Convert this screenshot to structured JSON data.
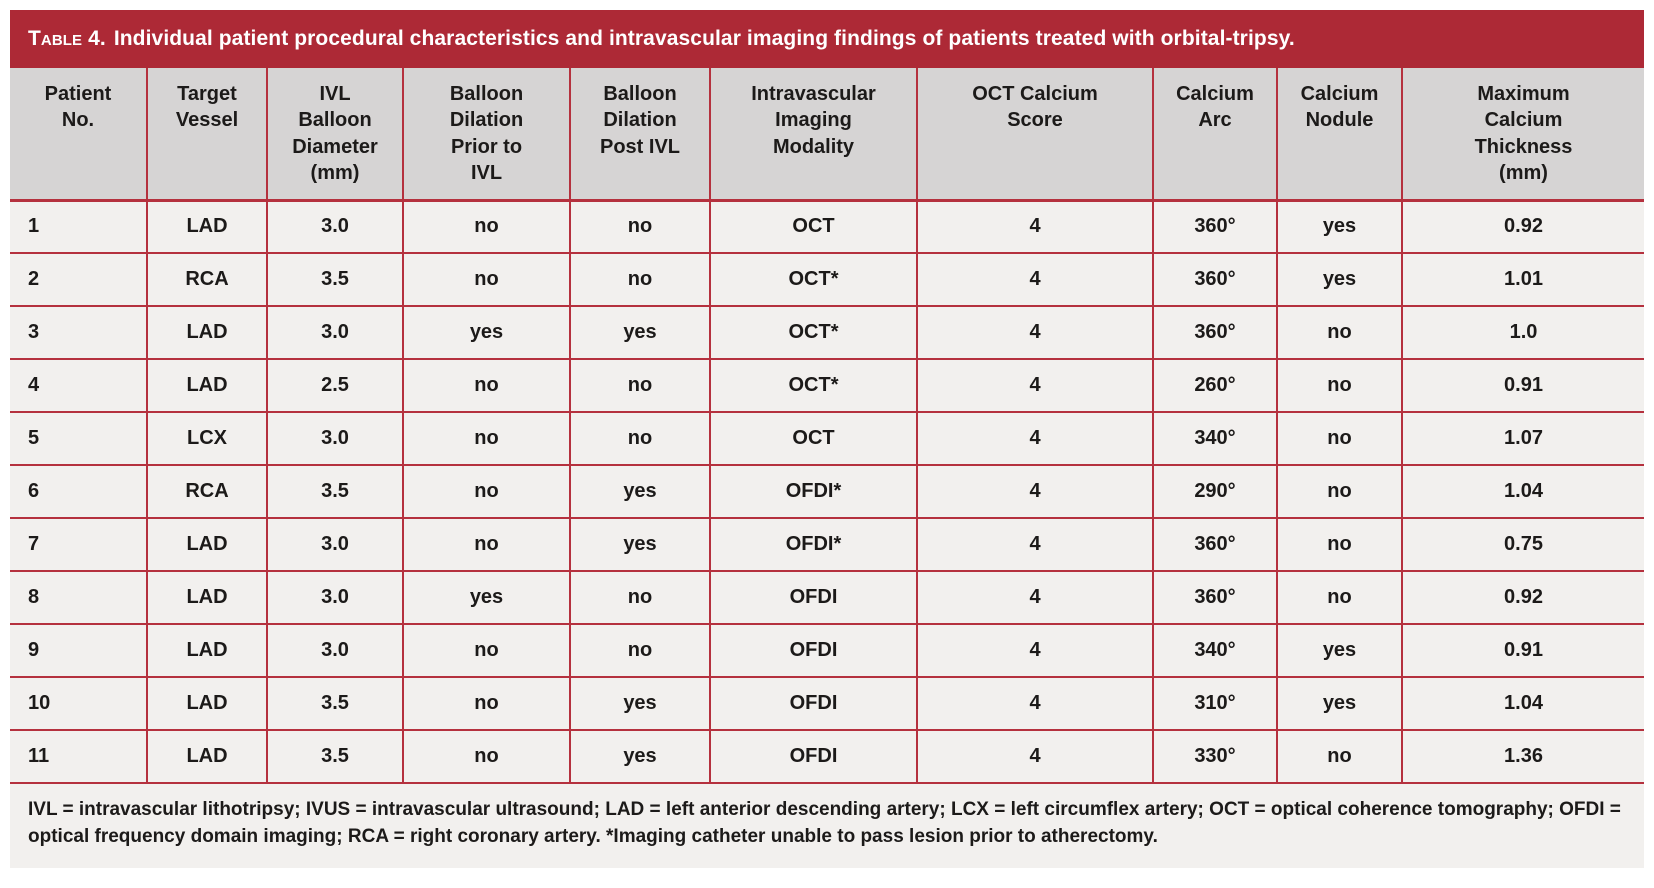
{
  "title": {
    "label": "Table 4.",
    "text": "Individual patient procedural characteristics and intravascular imaging findings of patients treated with orbital-tripsy."
  },
  "colors": {
    "accent_red": "#ad2936",
    "rule_red": "#b5313e",
    "header_gray": "#d6d4d4",
    "row_background": "#f2f0ee",
    "title_text": "#ffffff",
    "body_text": "#1c1a19"
  },
  "table": {
    "columns": [
      {
        "label": "Patient\nNo."
      },
      {
        "label": "Target\nVessel"
      },
      {
        "label": "IVL\nBalloon\nDiameter\n(mm)"
      },
      {
        "label": "Balloon\nDilation\nPrior to\nIVL"
      },
      {
        "label": "Balloon\nDilation\nPost IVL"
      },
      {
        "label": "Intravascular\nImaging\nModality"
      },
      {
        "label": "OCT Calcium\nScore"
      },
      {
        "label": "Calcium\nArc"
      },
      {
        "label": "Calcium\nNodule"
      },
      {
        "label": "Maximum\nCalcium\nThickness\n(mm)"
      }
    ],
    "rows": [
      {
        "cells": [
          "1",
          "LAD",
          "3.0",
          "no",
          "no",
          "OCT",
          "4",
          "360°",
          "yes",
          "0.92"
        ]
      },
      {
        "cells": [
          "2",
          "RCA",
          "3.5",
          "no",
          "no",
          "OCT*",
          "4",
          "360°",
          "yes",
          "1.01"
        ]
      },
      {
        "cells": [
          "3",
          "LAD",
          "3.0",
          "yes",
          "yes",
          "OCT*",
          "4",
          "360°",
          "no",
          "1.0"
        ]
      },
      {
        "cells": [
          "4",
          "LAD",
          "2.5",
          "no",
          "no",
          "OCT*",
          "4",
          "260°",
          "no",
          "0.91"
        ]
      },
      {
        "cells": [
          "5",
          "LCX",
          "3.0",
          "no",
          "no",
          "OCT",
          "4",
          "340°",
          "no",
          "1.07"
        ]
      },
      {
        "cells": [
          "6",
          "RCA",
          "3.5",
          "no",
          "yes",
          "OFDI*",
          "4",
          "290°",
          "no",
          "1.04"
        ]
      },
      {
        "cells": [
          "7",
          "LAD",
          "3.0",
          "no",
          "yes",
          "OFDI*",
          "4",
          "360°",
          "no",
          "0.75"
        ]
      },
      {
        "cells": [
          "8",
          "LAD",
          "3.0",
          "yes",
          "no",
          "OFDI",
          "4",
          "360°",
          "no",
          "0.92"
        ]
      },
      {
        "cells": [
          "9",
          "LAD",
          "3.0",
          "no",
          "no",
          "OFDI",
          "4",
          "340°",
          "yes",
          "0.91"
        ]
      },
      {
        "cells": [
          "10",
          "LAD",
          "3.5",
          "no",
          "yes",
          "OFDI",
          "4",
          "310°",
          "yes",
          "1.04"
        ]
      },
      {
        "cells": [
          "11",
          "LAD",
          "3.5",
          "no",
          "yes",
          "OFDI",
          "4",
          "330°",
          "no",
          "1.36"
        ]
      }
    ]
  },
  "footnote": "IVL = intravascular lithotripsy; IVUS = intravascular ultrasound; LAD = left anterior descending artery; LCX = left circumflex artery; OCT = optical coherence tomography; OFDI = optical frequency domain imaging; RCA = right coronary artery. *Imaging catheter unable to pass lesion prior to atherectomy."
}
